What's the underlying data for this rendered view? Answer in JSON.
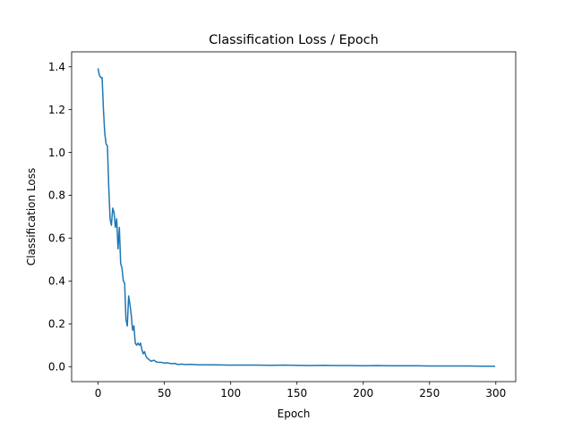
{
  "chart_data": {
    "type": "line",
    "title": "Classification Loss / Epoch",
    "xlabel": "Epoch",
    "ylabel": "Classification Loss",
    "xlim": [
      -20,
      315
    ],
    "ylim": [
      -0.07,
      1.47
    ],
    "xticks": [
      0,
      50,
      100,
      150,
      200,
      250,
      300
    ],
    "yticks": [
      0.0,
      0.2,
      0.4,
      0.6,
      0.8,
      1.0,
      1.2,
      1.4
    ],
    "ytick_labels": [
      "0.0",
      "0.2",
      "0.4",
      "0.6",
      "0.8",
      "1.0",
      "1.2",
      "1.4"
    ],
    "grid": false,
    "series": [
      {
        "color": "#1f77b4",
        "x": [
          0,
          1,
          2,
          3,
          4,
          5,
          6,
          7,
          8,
          9,
          10,
          11,
          12,
          13,
          14,
          15,
          16,
          17,
          18,
          19,
          20,
          21,
          22,
          23,
          24,
          25,
          26,
          27,
          28,
          29,
          30,
          31,
          32,
          33,
          34,
          35,
          36,
          37,
          38,
          39,
          40,
          42,
          44,
          46,
          48,
          50,
          52,
          55,
          58,
          60,
          63,
          66,
          70,
          75,
          80,
          90,
          100,
          110,
          120,
          130,
          140,
          150,
          160,
          170,
          180,
          190,
          200,
          210,
          220,
          230,
          240,
          250,
          260,
          270,
          280,
          290,
          299
        ],
        "y": [
          1.39,
          1.36,
          1.35,
          1.35,
          1.2,
          1.09,
          1.04,
          1.03,
          0.84,
          0.69,
          0.66,
          0.74,
          0.72,
          0.65,
          0.69,
          0.55,
          0.65,
          0.48,
          0.46,
          0.4,
          0.39,
          0.22,
          0.19,
          0.33,
          0.29,
          0.24,
          0.17,
          0.19,
          0.11,
          0.1,
          0.11,
          0.1,
          0.11,
          0.08,
          0.06,
          0.07,
          0.05,
          0.04,
          0.035,
          0.03,
          0.025,
          0.03,
          0.022,
          0.02,
          0.02,
          0.016,
          0.018,
          0.014,
          0.015,
          0.01,
          0.012,
          0.01,
          0.011,
          0.009,
          0.009,
          0.008,
          0.007,
          0.007,
          0.007,
          0.006,
          0.007,
          0.006,
          0.005,
          0.006,
          0.005,
          0.005,
          0.004,
          0.005,
          0.004,
          0.004,
          0.004,
          0.003,
          0.003,
          0.003,
          0.003,
          0.002,
          0.002
        ]
      }
    ]
  }
}
